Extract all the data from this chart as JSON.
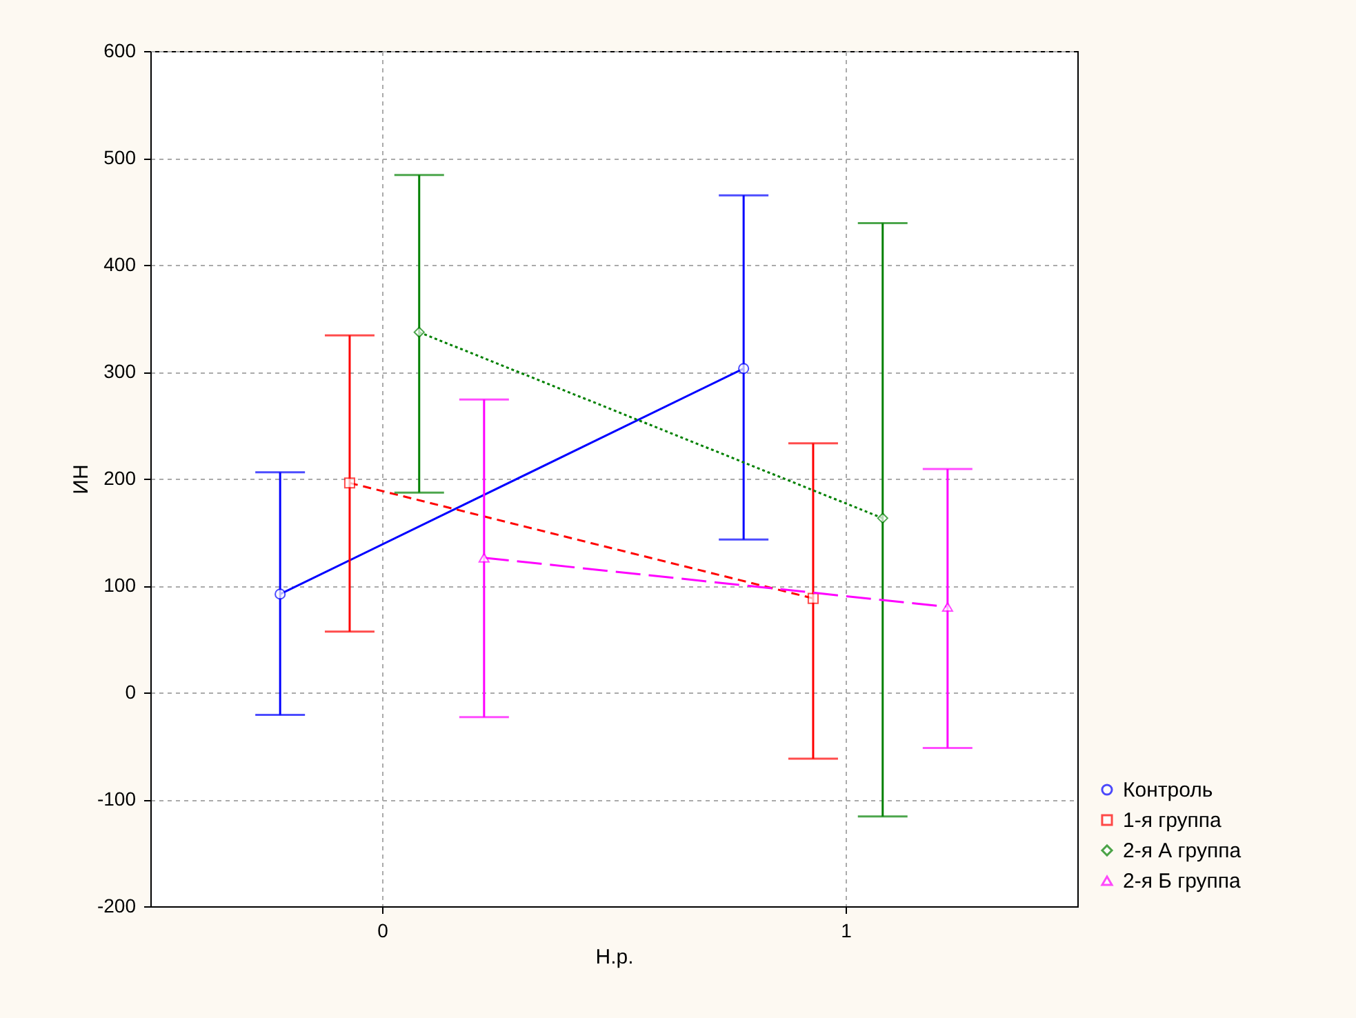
{
  "chart_data": {
    "type": "line",
    "xlabel": "Н.р.",
    "ylabel": "ИН",
    "xlim": [
      -0.5,
      1.5
    ],
    "xticks": [
      0,
      1
    ],
    "ylim": [
      -200,
      600
    ],
    "yticks": [
      -200,
      -100,
      0,
      100,
      200,
      300,
      400,
      500,
      600
    ],
    "grid": true,
    "legend": "bottom right",
    "series": [
      {
        "name": "Контроль",
        "color": "#0000ff",
        "marker": "circle",
        "line_style": "solid",
        "x": [
          -0.22,
          0.78
        ],
        "values": [
          92,
          303
        ],
        "errors": [
          [
            -21,
            206
          ],
          [
            143,
            465
          ]
        ]
      },
      {
        "name": "1-я группа",
        "color": "#ff0000",
        "marker": "square",
        "line_style": "dashed",
        "x": [
          -0.07,
          0.93
        ],
        "values": [
          196,
          88
        ],
        "errors": [
          [
            57,
            334
          ],
          [
            -62,
            233
          ]
        ]
      },
      {
        "name": "2-я А группа",
        "color": "#008000",
        "marker": "diamond",
        "line_style": "dotted",
        "x": [
          0.08,
          1.08
        ],
        "values": [
          337,
          163
        ],
        "errors": [
          [
            187,
            484
          ],
          [
            -116,
            439
          ]
        ]
      },
      {
        "name": "2-я Б группа",
        "color": "#ff00ff",
        "marker": "triangle",
        "line_style": "longdash",
        "x": [
          0.22,
          1.22
        ],
        "values": [
          126,
          80
        ],
        "errors": [
          [
            -23,
            274
          ],
          [
            -52,
            209
          ]
        ]
      }
    ]
  }
}
